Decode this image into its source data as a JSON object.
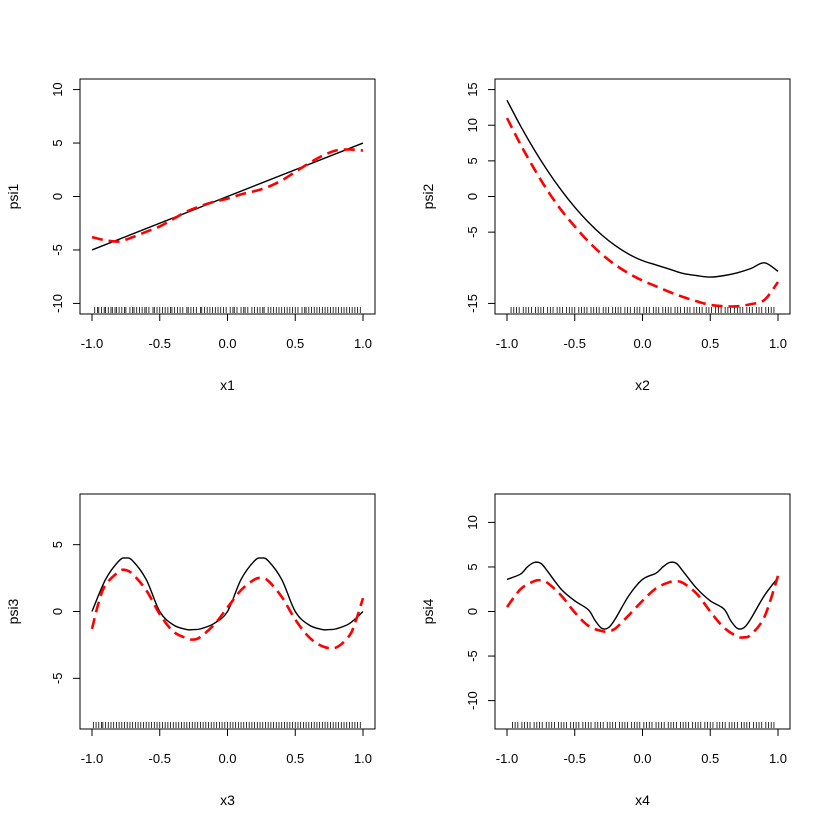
{
  "colors": {
    "true_curve": "#000000",
    "estimate_curve": "#ff0000",
    "background": "#ffffff"
  },
  "chart_data": [
    {
      "type": "line",
      "xlabel": "x1",
      "ylabel": "psi1",
      "xlim": [
        -1.0,
        1.0
      ],
      "ylim": [
        -10,
        10
      ],
      "x_ticks": [
        "-1.0",
        "-0.5",
        "0.0",
        "0.5",
        "1.0"
      ],
      "y_ticks": [
        "-10",
        "-5",
        "0",
        "5",
        "10"
      ],
      "grid": false,
      "series": [
        {
          "style": "solid black",
          "x": [
            -1.0,
            1.0
          ],
          "y": [
            -5.0,
            5.0
          ]
        },
        {
          "style": "dashed red",
          "x": [
            -1.0,
            -0.9,
            -0.8,
            -0.7,
            -0.6,
            -0.5,
            -0.4,
            -0.3,
            -0.2,
            -0.1,
            0.0,
            0.1,
            0.2,
            0.3,
            0.4,
            0.5,
            0.6,
            0.7,
            0.8,
            0.9,
            1.0
          ],
          "y": [
            -3.8,
            -4.1,
            -4.2,
            -3.8,
            -3.3,
            -2.8,
            -2.1,
            -1.4,
            -0.9,
            -0.5,
            -0.2,
            0.2,
            0.5,
            0.9,
            1.5,
            2.3,
            3.1,
            3.8,
            4.3,
            4.4,
            4.3
          ]
        }
      ]
    },
    {
      "type": "line",
      "xlabel": "x2",
      "ylabel": "psi2",
      "xlim": [
        -1.0,
        1.0
      ],
      "ylim": [
        -15,
        15
      ],
      "x_ticks": [
        "-1.0",
        "-0.5",
        "0.0",
        "0.5",
        "1.0"
      ],
      "y_ticks": [
        "-15",
        "-5",
        "0",
        "5",
        "10",
        "15"
      ],
      "grid": false,
      "series": [
        {
          "style": "solid black",
          "x": [
            -1.0,
            -0.9,
            -0.8,
            -0.7,
            -0.6,
            -0.5,
            -0.4,
            -0.3,
            -0.2,
            -0.1,
            0.0,
            0.1,
            0.2,
            0.3,
            0.4,
            0.5,
            0.6,
            0.7,
            0.8,
            0.9,
            1.0
          ],
          "y": [
            13.5,
            9.9,
            6.6,
            3.6,
            0.9,
            -1.5,
            -3.6,
            -5.4,
            -6.9,
            -8.1,
            -9.0,
            -9.6,
            -10.2,
            -10.8,
            -11.1,
            -11.3,
            -11.1,
            -10.7,
            -10.1,
            -9.3,
            -10.5
          ]
        },
        {
          "style": "dashed red",
          "x": [
            -1.0,
            -0.9,
            -0.8,
            -0.7,
            -0.6,
            -0.5,
            -0.4,
            -0.3,
            -0.2,
            -0.1,
            0.0,
            0.1,
            0.2,
            0.3,
            0.4,
            0.5,
            0.6,
            0.7,
            0.8,
            0.9,
            1.0
          ],
          "y": [
            11.0,
            7.3,
            3.9,
            0.8,
            -1.9,
            -4.2,
            -6.3,
            -8.1,
            -9.6,
            -10.8,
            -11.8,
            -12.6,
            -13.4,
            -14.1,
            -14.7,
            -15.2,
            -15.4,
            -15.4,
            -15.1,
            -14.5,
            -12.0
          ]
        }
      ]
    },
    {
      "type": "line",
      "xlabel": "x3",
      "ylabel": "psi3",
      "xlim": [
        -1.0,
        1.0
      ],
      "ylim": [
        -8,
        8
      ],
      "x_ticks": [
        "-1.0",
        "-0.5",
        "0.0",
        "0.5",
        "1.0"
      ],
      "y_ticks": [
        "-5",
        "0",
        "5"
      ],
      "grid": false,
      "series": [
        {
          "style": "solid black",
          "x": [
            -1.0,
            -0.9,
            -0.8,
            -0.75,
            -0.7,
            -0.6,
            -0.5,
            -0.4,
            -0.3,
            -0.25,
            -0.2,
            -0.1,
            0.0,
            0.1,
            0.2,
            0.25,
            0.3,
            0.4,
            0.5,
            0.6,
            0.7,
            0.75,
            0.8,
            0.9,
            1.0
          ],
          "y": [
            0.0,
            2.4,
            3.8,
            4.0,
            3.8,
            2.4,
            0.0,
            -1.0,
            -1.35,
            -1.35,
            -1.3,
            -0.9,
            0.0,
            2.4,
            3.8,
            4.0,
            3.8,
            2.4,
            0.0,
            -1.0,
            -1.35,
            -1.35,
            -1.3,
            -0.9,
            0.0
          ]
        },
        {
          "style": "dashed red",
          "x": [
            -1.0,
            -0.95,
            -0.9,
            -0.8,
            -0.75,
            -0.7,
            -0.6,
            -0.5,
            -0.4,
            -0.3,
            -0.25,
            -0.2,
            -0.1,
            0.0,
            0.1,
            0.2,
            0.25,
            0.3,
            0.4,
            0.5,
            0.6,
            0.7,
            0.8,
            0.9,
            0.95,
            1.0
          ],
          "y": [
            -1.3,
            0.7,
            2.0,
            3.0,
            3.1,
            2.8,
            1.6,
            -0.2,
            -1.5,
            -2.0,
            -2.1,
            -1.9,
            -1.0,
            0.3,
            1.6,
            2.4,
            2.5,
            2.3,
            1.1,
            -0.6,
            -1.9,
            -2.6,
            -2.7,
            -1.8,
            -0.6,
            1.0
          ]
        }
      ]
    },
    {
      "type": "line",
      "xlabel": "x4",
      "ylabel": "psi4",
      "xlim": [
        -1.0,
        1.0
      ],
      "ylim": [
        -12,
        12
      ],
      "x_ticks": [
        "-1.0",
        "-0.5",
        "0.0",
        "0.5",
        "1.0"
      ],
      "y_ticks": [
        "-10",
        "-5",
        "0",
        "5",
        "10"
      ],
      "grid": false,
      "series": [
        {
          "style": "solid black",
          "x": [
            -1.0,
            -0.9,
            -0.85,
            -0.8,
            -0.75,
            -0.7,
            -0.6,
            -0.5,
            -0.4,
            -0.35,
            -0.3,
            -0.25,
            -0.2,
            -0.1,
            0.0,
            0.1,
            0.15,
            0.2,
            0.25,
            0.3,
            0.4,
            0.5,
            0.6,
            0.65,
            0.7,
            0.75,
            0.8,
            0.9,
            1.0
          ],
          "y": [
            3.6,
            4.2,
            5.0,
            5.5,
            5.4,
            4.5,
            2.5,
            1.2,
            0.2,
            -1.0,
            -1.9,
            -1.8,
            -0.8,
            1.8,
            3.6,
            4.3,
            5.0,
            5.5,
            5.4,
            4.5,
            2.6,
            1.2,
            0.3,
            -1.0,
            -1.9,
            -1.8,
            -0.8,
            1.8,
            3.8
          ]
        },
        {
          "style": "dashed red",
          "x": [
            -1.0,
            -0.9,
            -0.8,
            -0.75,
            -0.7,
            -0.6,
            -0.5,
            -0.4,
            -0.3,
            -0.25,
            -0.2,
            -0.1,
            0.0,
            0.1,
            0.2,
            0.25,
            0.3,
            0.4,
            0.5,
            0.6,
            0.7,
            0.75,
            0.8,
            0.9,
            1.0
          ],
          "y": [
            0.5,
            2.5,
            3.4,
            3.5,
            3.2,
            1.8,
            -0.1,
            -1.6,
            -2.2,
            -2.2,
            -1.9,
            -0.4,
            1.2,
            2.6,
            3.3,
            3.4,
            3.2,
            2.0,
            0.0,
            -1.8,
            -2.8,
            -2.9,
            -2.6,
            -0.6,
            4.0
          ]
        }
      ]
    }
  ],
  "rug": [
    [
      -0.98,
      -0.96,
      -0.95,
      -0.93,
      -0.91,
      -0.9,
      -0.88,
      -0.86,
      -0.85,
      -0.83,
      -0.82,
      -0.8,
      -0.78,
      -0.76,
      -0.75,
      -0.72,
      -0.7,
      -0.69,
      -0.67,
      -0.65,
      -0.63,
      -0.61,
      -0.6,
      -0.58,
      -0.55,
      -0.54,
      -0.52,
      -0.5,
      -0.48,
      -0.46,
      -0.44,
      -0.42,
      -0.41,
      -0.39,
      -0.37,
      -0.35,
      -0.33,
      -0.3,
      -0.29,
      -0.27,
      -0.25,
      -0.23,
      -0.2,
      -0.19,
      -0.17,
      -0.15,
      -0.13,
      -0.11,
      -0.09,
      -0.07,
      -0.05,
      -0.03,
      -0.01,
      0.02,
      0.04,
      0.05,
      0.07,
      0.1,
      0.12,
      0.13,
      0.15,
      0.18,
      0.2,
      0.22,
      0.24,
      0.26,
      0.27,
      0.3,
      0.32,
      0.34,
      0.36,
      0.38,
      0.4,
      0.42,
      0.44,
      0.46,
      0.48,
      0.5,
      0.52,
      0.55,
      0.57,
      0.58,
      0.6,
      0.62,
      0.64,
      0.66,
      0.68,
      0.7,
      0.72,
      0.74,
      0.76,
      0.78,
      0.8,
      0.82,
      0.84,
      0.86,
      0.88,
      0.9,
      0.92,
      0.94,
      0.96,
      0.98
    ],
    [
      -0.97,
      -0.95,
      -0.93,
      -0.91,
      -0.88,
      -0.86,
      -0.84,
      -0.82,
      -0.79,
      -0.77,
      -0.75,
      -0.73,
      -0.7,
      -0.68,
      -0.66,
      -0.63,
      -0.61,
      -0.59,
      -0.56,
      -0.54,
      -0.52,
      -0.5,
      -0.47,
      -0.45,
      -0.43,
      -0.41,
      -0.38,
      -0.36,
      -0.34,
      -0.32,
      -0.29,
      -0.27,
      -0.25,
      -0.22,
      -0.2,
      -0.18,
      -0.16,
      -0.13,
      -0.11,
      -0.09,
      -0.06,
      -0.04,
      -0.02,
      0.01,
      0.03,
      0.05,
      0.08,
      0.1,
      0.12,
      0.15,
      0.17,
      0.19,
      0.21,
      0.24,
      0.26,
      0.28,
      0.31,
      0.33,
      0.35,
      0.38,
      0.4,
      0.42,
      0.44,
      0.47,
      0.49,
      0.51,
      0.54,
      0.56,
      0.58,
      0.61,
      0.63,
      0.65,
      0.68,
      0.7,
      0.72,
      0.74,
      0.77,
      0.79,
      0.81,
      0.84,
      0.86,
      0.88,
      0.91,
      0.93,
      0.95,
      0.97
    ],
    [
      -0.99,
      -0.97,
      -0.95,
      -0.93,
      -0.92,
      -0.9,
      -0.88,
      -0.86,
      -0.84,
      -0.82,
      -0.8,
      -0.78,
      -0.76,
      -0.74,
      -0.72,
      -0.7,
      -0.68,
      -0.66,
      -0.64,
      -0.62,
      -0.6,
      -0.58,
      -0.56,
      -0.54,
      -0.52,
      -0.5,
      -0.48,
      -0.46,
      -0.44,
      -0.42,
      -0.4,
      -0.38,
      -0.36,
      -0.34,
      -0.32,
      -0.3,
      -0.28,
      -0.26,
      -0.24,
      -0.22,
      -0.2,
      -0.18,
      -0.16,
      -0.14,
      -0.12,
      -0.1,
      -0.08,
      -0.06,
      -0.04,
      -0.02,
      0.0,
      0.02,
      0.04,
      0.06,
      0.08,
      0.1,
      0.12,
      0.14,
      0.16,
      0.18,
      0.2,
      0.22,
      0.24,
      0.26,
      0.28,
      0.3,
      0.32,
      0.34,
      0.36,
      0.38,
      0.4,
      0.42,
      0.44,
      0.46,
      0.48,
      0.5,
      0.52,
      0.54,
      0.56,
      0.58,
      0.6,
      0.62,
      0.64,
      0.66,
      0.68,
      0.7,
      0.72,
      0.74,
      0.76,
      0.78,
      0.8,
      0.82,
      0.84,
      0.86,
      0.88,
      0.9,
      0.92,
      0.94,
      0.96,
      0.98
    ],
    [
      -0.96,
      -0.94,
      -0.92,
      -0.89,
      -0.87,
      -0.85,
      -0.83,
      -0.8,
      -0.78,
      -0.76,
      -0.74,
      -0.71,
      -0.69,
      -0.67,
      -0.65,
      -0.62,
      -0.6,
      -0.58,
      -0.56,
      -0.53,
      -0.51,
      -0.49,
      -0.47,
      -0.44,
      -0.42,
      -0.4,
      -0.38,
      -0.35,
      -0.33,
      -0.31,
      -0.29,
      -0.26,
      -0.24,
      -0.22,
      -0.2,
      -0.17,
      -0.15,
      -0.13,
      -0.11,
      -0.08,
      -0.06,
      -0.04,
      -0.02,
      0.01,
      0.03,
      0.05,
      0.07,
      0.1,
      0.12,
      0.14,
      0.16,
      0.19,
      0.21,
      0.23,
      0.25,
      0.28,
      0.3,
      0.32,
      0.34,
      0.37,
      0.39,
      0.41,
      0.43,
      0.46,
      0.48,
      0.5,
      0.52,
      0.55,
      0.57,
      0.59,
      0.61,
      0.64,
      0.66,
      0.68,
      0.7,
      0.73,
      0.75,
      0.77,
      0.79,
      0.82,
      0.84,
      0.86,
      0.88,
      0.91,
      0.93,
      0.95,
      0.97
    ]
  ]
}
